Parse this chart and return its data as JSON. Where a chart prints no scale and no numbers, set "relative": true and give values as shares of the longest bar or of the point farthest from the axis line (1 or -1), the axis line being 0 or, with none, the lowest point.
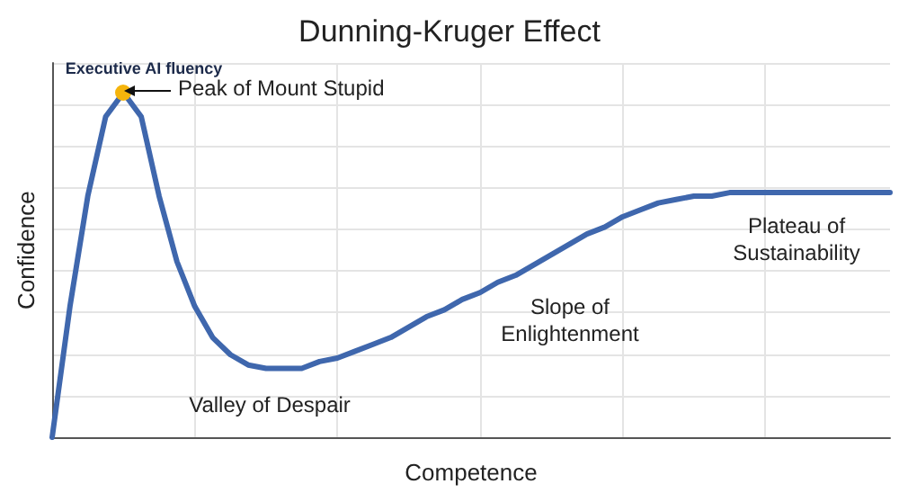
{
  "chart_data": {
    "type": "line",
    "title": "Dunning-Kruger Effect",
    "xlabel": "Competence",
    "ylabel": "Confidence",
    "relative": true,
    "grid": true,
    "marker": "none",
    "categories": [
      null,
      null,
      null,
      null,
      null,
      null,
      null,
      null,
      null,
      null,
      null,
      null,
      null,
      null,
      null,
      null,
      null,
      null,
      null,
      null,
      null,
      null,
      null,
      null,
      null,
      null,
      null,
      null,
      null,
      null,
      null,
      null,
      null,
      null,
      null,
      null,
      null,
      null,
      null,
      null,
      null,
      null,
      null,
      null,
      null,
      null,
      null,
      null
    ],
    "series": [
      {
        "color": "#3f67ad",
        "values": [
          0,
          0.38,
          0.7,
          0.93,
          1,
          0.93,
          0.7,
          0.51,
          0.38,
          0.29,
          0.24,
          0.21,
          0.2,
          0.2,
          0.2,
          0.22,
          0.23,
          0.25,
          0.27,
          0.29,
          0.32,
          0.35,
          0.37,
          0.4,
          0.42,
          0.45,
          0.47,
          0.5,
          0.53,
          0.56,
          0.59,
          0.61,
          0.64,
          0.66,
          0.68,
          0.69,
          0.7,
          0.7,
          0.71,
          0.71,
          0.71,
          0.71,
          0.71,
          0.71,
          0.71,
          0.71,
          0.71,
          0.71
        ]
      }
    ],
    "annotations": [
      "Executive AI fluency",
      "Peak of Mount Stupid",
      "Valley of Despair",
      "Slope of\nEnlightenment",
      "Plateau of\nSustainability"
    ]
  }
}
